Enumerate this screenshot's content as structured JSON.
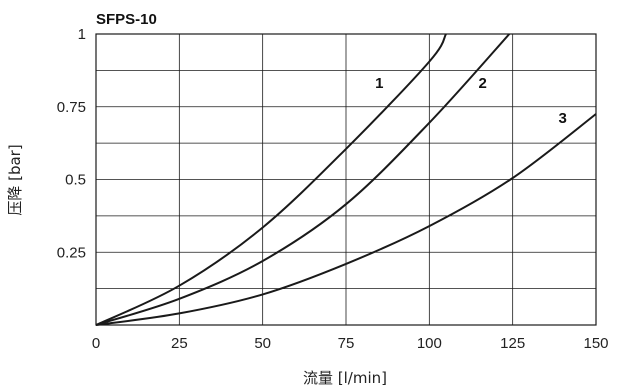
{
  "chart_data": {
    "type": "line",
    "title": "SFPS-10",
    "xlabel": "流量 [l/min]",
    "ylabel": "压降 [bar]",
    "xlim": [
      0,
      150
    ],
    "ylim": [
      0,
      1
    ],
    "x_ticks": [
      "0",
      "25",
      "50",
      "75",
      "100",
      "125",
      "150"
    ],
    "y_ticks": [
      "0.25",
      "0.5",
      "0.75",
      "1"
    ],
    "grid": true,
    "series": [
      {
        "name": "1",
        "x": [
          0,
          25,
          50,
          75,
          100,
          105
        ],
        "y": [
          0,
          0.135,
          0.335,
          0.605,
          0.905,
          1.0
        ]
      },
      {
        "name": "2",
        "x": [
          0,
          25,
          50,
          75,
          100,
          124
        ],
        "y": [
          0,
          0.09,
          0.22,
          0.415,
          0.695,
          1.0
        ]
      },
      {
        "name": "3",
        "x": [
          0,
          25,
          50,
          75,
          100,
          125,
          150
        ],
        "y": [
          0,
          0.04,
          0.105,
          0.21,
          0.34,
          0.505,
          0.725
        ]
      }
    ],
    "colors": {
      "line": "#1a1a1a",
      "grid": "#1a1a1a"
    }
  }
}
